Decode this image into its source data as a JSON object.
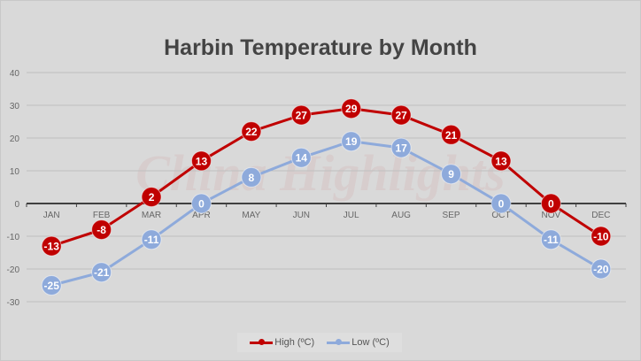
{
  "chart_data": {
    "type": "line",
    "title": "Harbin Temperature by Month",
    "categories": [
      "JAN",
      "FEB",
      "MAR",
      "APR",
      "MAY",
      "JUN",
      "JUL",
      "AUG",
      "SEP",
      "OCT",
      "NOV",
      "DEC"
    ],
    "series": [
      {
        "name": "High (ºC)",
        "color": "#c00000",
        "values": [
          -13,
          -8,
          2,
          13,
          22,
          27,
          29,
          27,
          21,
          13,
          0,
          -10
        ]
      },
      {
        "name": "Low (ºC)",
        "color": "#8eaadb",
        "values": [
          -25,
          -21,
          -11,
          0,
          8,
          14,
          19,
          17,
          9,
          0,
          -11,
          -20
        ]
      }
    ],
    "ylim": [
      -30,
      40
    ],
    "yticks": [
      40,
      30,
      20,
      10,
      0,
      -10,
      -20,
      -30
    ],
    "grid": true,
    "data_labels": true,
    "legend_position": "bottom",
    "watermark": "China Highlights"
  }
}
